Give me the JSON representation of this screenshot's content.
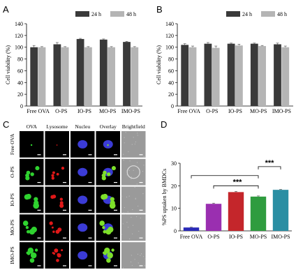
{
  "panel_labels": {
    "a": "A",
    "b": "B",
    "c": "C",
    "d": "D"
  },
  "chart_data": [
    {
      "type": "bar",
      "panel": "A",
      "categories": [
        "Free OVA",
        "O-PS",
        "IO-PS",
        "MO-PS",
        "IMO-PS"
      ],
      "series": [
        {
          "name": "24 h",
          "values": [
            100,
            105,
            114,
            113,
            109
          ],
          "errors": [
            3,
            3,
            1,
            1,
            1
          ],
          "color": "#3a3a3a"
        },
        {
          "name": "48 h",
          "values": [
            100,
            100,
            100,
            100,
            100
          ],
          "errors": [
            1,
            1,
            1,
            1,
            1
          ],
          "color": "#b5b5b5"
        }
      ],
      "xlabel": "",
      "ylabel": "Cell viability (%)",
      "ylim": [
        0,
        140
      ],
      "yticks": [
        0,
        20,
        40,
        60,
        80,
        100,
        120,
        140
      ],
      "legend_placement": "top-right"
    },
    {
      "type": "bar",
      "panel": "B",
      "categories": [
        "Free OVA",
        "O-PS",
        "IO-PS",
        "MO-PS",
        "IMO-PS"
      ],
      "series": [
        {
          "name": "24 h",
          "values": [
            104,
            106,
            106,
            106,
            105
          ],
          "errors": [
            2,
            2,
            1,
            1,
            2
          ],
          "color": "#3a3a3a"
        },
        {
          "name": "48 h",
          "values": [
            100,
            99,
            103,
            102,
            100
          ],
          "errors": [
            2,
            3,
            2,
            1,
            2
          ],
          "color": "#b5b5b5"
        }
      ],
      "xlabel": "",
      "ylabel": "Cell viability (%)",
      "ylim": [
        0,
        140
      ],
      "yticks": [
        0,
        20,
        40,
        60,
        80,
        100,
        120,
        140
      ],
      "legend_placement": "top-right"
    },
    {
      "type": "bar",
      "panel": "D",
      "categories": [
        "Free OVA",
        "O-PS",
        "IO-PS",
        "MO-PS",
        "IMO-PS"
      ],
      "values": [
        1.5,
        12,
        17.2,
        15.2,
        18.2
      ],
      "errors": [
        0.2,
        0.3,
        0.3,
        0.3,
        0.2
      ],
      "colors": [
        "#2a2ab8",
        "#9a2fb0",
        "#c4262b",
        "#2f9c3f",
        "#2a8ea3"
      ],
      "xlabel": "",
      "ylabel": "%PS uptaken by BMDCs",
      "ylim": [
        0,
        30
      ],
      "yticks": [
        0,
        10,
        20,
        30
      ],
      "significance": [
        {
          "from": "Free OVA",
          "to": "MO-PS",
          "label": ""
        },
        {
          "from": "O-PS",
          "to": "MO-PS",
          "label": "***"
        },
        {
          "from": "MO-PS",
          "to": "IMO-PS",
          "label": "***"
        }
      ]
    }
  ],
  "micrograph_grid": {
    "columns": [
      "OVA",
      "Lysosome",
      "Nucleu",
      "Overlay",
      "Brightfield"
    ],
    "rows": [
      "Free OVA",
      "O-PS",
      "IO-PS",
      "MO-PS",
      "IMO-PS"
    ]
  }
}
